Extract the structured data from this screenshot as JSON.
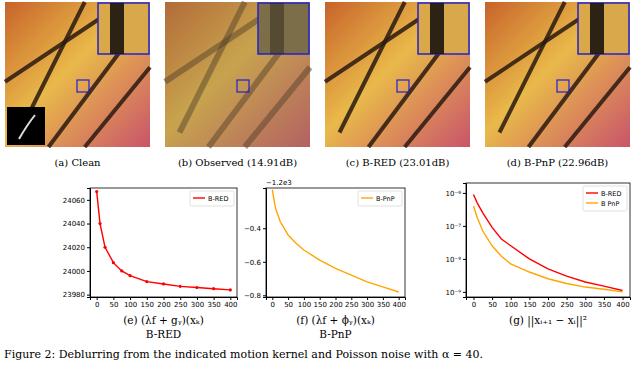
{
  "images": [
    {
      "caption": "(a) Clean"
    },
    {
      "caption": "(b) Observed (14.91dB)"
    },
    {
      "caption": "(c) B-RED (23.01dB)"
    },
    {
      "caption": "(d) B-PnP (22.96dB)"
    }
  ],
  "chart_data": [
    {
      "type": "line",
      "title": "(e) (λf + gᵧ)(xₖ)",
      "subtitle": "B-RED",
      "x": [
        0,
        10,
        25,
        50,
        75,
        100,
        150,
        200,
        250,
        300,
        350,
        400
      ],
      "series": [
        {
          "name": "B-RED",
          "color": "#ff0000",
          "marker": "circle",
          "values": [
            24067,
            24040,
            24020,
            24007,
            24000,
            23996,
            23991,
            23989,
            23987,
            23986,
            23985,
            23984
          ]
        }
      ],
      "xlim": [
        -20,
        420
      ],
      "xticks": [
        0,
        50,
        100,
        150,
        200,
        250,
        300,
        350,
        400
      ],
      "ylim": [
        23978,
        24070
      ],
      "yticks": [
        23980,
        24000,
        24020,
        24040,
        24060
      ],
      "legend": "upper right"
    },
    {
      "type": "line",
      "title": "(f) (λf + ϕᵧ)(xₖ)",
      "subtitle": "B-PnP",
      "y_offset_label": "−1.2e3",
      "x": [
        0,
        10,
        25,
        50,
        75,
        100,
        150,
        200,
        250,
        300,
        350,
        400
      ],
      "series": [
        {
          "name": "B-PnP",
          "color": "#ffa500",
          "values": [
            -0.17,
            -0.28,
            -0.36,
            -0.44,
            -0.49,
            -0.53,
            -0.59,
            -0.64,
            -0.68,
            -0.72,
            -0.75,
            -0.78
          ]
        }
      ],
      "xlim": [
        -20,
        420
      ],
      "xticks": [
        0,
        50,
        100,
        150,
        200,
        250,
        300,
        350,
        400
      ],
      "ylim": [
        -0.81,
        -0.16
      ],
      "yticks": [
        {
          "value": -0.8,
          "label": "−0.8"
        },
        {
          "value": -0.6,
          "label": "−0.6"
        },
        {
          "value": -0.4,
          "label": "−0.4"
        }
      ],
      "legend": "upper right"
    },
    {
      "type": "line",
      "title": "(g) ||xᵢ₊₁ − xᵢ||²",
      "log": "y",
      "x": [
        0,
        10,
        25,
        50,
        75,
        100,
        150,
        200,
        250,
        300,
        350,
        400
      ],
      "series": [
        {
          "name": "B-RED",
          "color": "#ff0000",
          "values": [
            9e-07,
            5e-07,
            2.5e-07,
            9e-08,
            4e-08,
            2.5e-08,
            1e-08,
            5e-09,
            3e-09,
            2e-09,
            1.5e-09,
            1.1e-09
          ]
        },
        {
          "name": "B PnP",
          "color": "#ffa500",
          "values": [
            4e-07,
            1.8e-07,
            7e-08,
            2.5e-08,
            1.2e-08,
            7e-09,
            4e-09,
            2.5e-09,
            1.8e-09,
            1.4e-09,
            1.2e-09,
            1e-09
          ]
        }
      ],
      "xlim": [
        -20,
        420
      ],
      "xticks": [
        0,
        50,
        100,
        150,
        200,
        250,
        300,
        350,
        400
      ],
      "ylim": [
        7e-10,
        2e-06
      ],
      "yticks": [
        {
          "value": 1e-09,
          "label": "10⁻⁹"
        },
        {
          "value": 1e-08,
          "label": "10⁻⁸"
        },
        {
          "value": 1e-07,
          "label": "10⁻⁷"
        },
        {
          "value": 1e-06,
          "label": "10⁻⁶"
        }
      ],
      "legend": "upper right"
    }
  ],
  "figure_caption": "Figure 2: Deblurring from the indicated motion kernel and Poisson noise with α = 40."
}
